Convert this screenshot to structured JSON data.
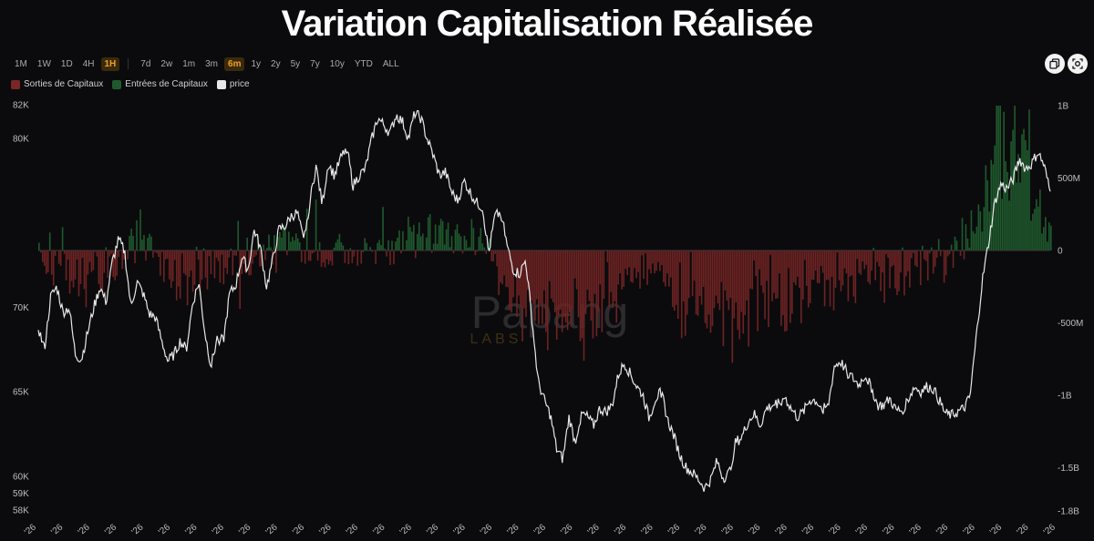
{
  "title": "Variation Capitalisation Réalisée",
  "timeframes": [
    "1M",
    "1W",
    "1D",
    "4H",
    "1H"
  ],
  "active_timeframe": "1H",
  "ranges": [
    "7d",
    "2w",
    "1m",
    "3m",
    "6m",
    "1y",
    "2y",
    "5y",
    "7y",
    "10y",
    "YTD",
    "ALL"
  ],
  "active_range": "6m",
  "legend": [
    {
      "label": "Sorties de Capitaux",
      "color": "#7a2626"
    },
    {
      "label": "Entrées de Capitaux",
      "color": "#1f5a2e"
    },
    {
      "label": "price",
      "color": "#e8e8e8"
    }
  ],
  "watermark": {
    "main": "Papang",
    "sub": "LABS"
  },
  "icons": {
    "copy": "copy-icon",
    "camera": "camera-icon"
  },
  "chart_data": {
    "type": "bar+line",
    "series": [
      {
        "name": "Sorties de Capitaux",
        "type": "bar",
        "color": "#7a2626"
      },
      {
        "name": "Entrées de Capitaux",
        "type": "bar",
        "color": "#1f5a2e"
      },
      {
        "name": "price",
        "type": "line",
        "color": "#e8e8e8"
      }
    ],
    "left_axis": {
      "ticks": [
        {
          "value": 82000,
          "label": "82K"
        },
        {
          "value": 80000,
          "label": "80K"
        },
        {
          "value": 70000,
          "label": "70K"
        },
        {
          "value": 65000,
          "label": "65K"
        },
        {
          "value": 60000,
          "label": "60K"
        },
        {
          "value": 59000,
          "label": "59K"
        },
        {
          "value": 58000,
          "label": "58K"
        }
      ]
    },
    "right_axis": {
      "ticks": [
        {
          "value": 1000000000,
          "label": "1B"
        },
        {
          "value": 500000000,
          "label": "500M"
        },
        {
          "value": 0,
          "label": "0"
        },
        {
          "value": -500000000,
          "label": "-500M"
        },
        {
          "value": -1000000000,
          "label": "-1B"
        },
        {
          "value": -1500000000,
          "label": "-1.5B"
        },
        {
          "value": -1800000000,
          "label": "-1.8B"
        }
      ]
    },
    "x_tick_label": "'26",
    "x_tick_count": 39,
    "price_keypoints": [
      [
        0,
        68800
      ],
      [
        1,
        67500
      ],
      [
        2,
        70600
      ],
      [
        3,
        71200
      ],
      [
        4,
        69700
      ],
      [
        5,
        70000
      ],
      [
        6,
        67200
      ],
      [
        7,
        66900
      ],
      [
        8,
        68500
      ],
      [
        9,
        70000
      ],
      [
        10,
        71200
      ],
      [
        11,
        70300
      ],
      [
        12,
        72700
      ],
      [
        13,
        74000
      ],
      [
        14,
        73300
      ],
      [
        15,
        70000
      ],
      [
        16,
        71500
      ],
      [
        17,
        70800
      ],
      [
        18,
        69600
      ],
      [
        19,
        69400
      ],
      [
        20,
        68000
      ],
      [
        21,
        66800
      ],
      [
        22,
        67200
      ],
      [
        23,
        68000
      ],
      [
        24,
        67500
      ],
      [
        25,
        70200
      ],
      [
        26,
        71500
      ],
      [
        27,
        68500
      ],
      [
        28,
        66500
      ],
      [
        29,
        68200
      ],
      [
        30,
        68000
      ],
      [
        31,
        70800
      ],
      [
        32,
        71300
      ],
      [
        33,
        73000
      ],
      [
        34,
        72200
      ],
      [
        35,
        74600
      ],
      [
        36,
        73500
      ],
      [
        37,
        71200
      ],
      [
        38,
        72800
      ],
      [
        39,
        74600
      ],
      [
        40,
        74800
      ],
      [
        41,
        75400
      ],
      [
        42,
        75600
      ],
      [
        43,
        73900
      ],
      [
        44,
        76200
      ],
      [
        45,
        78400
      ],
      [
        46,
        76100
      ],
      [
        47,
        78500
      ],
      [
        48,
        77800
      ],
      [
        49,
        78800
      ],
      [
        50,
        79500
      ],
      [
        51,
        77200
      ],
      [
        52,
        77800
      ],
      [
        53,
        78200
      ],
      [
        54,
        79900
      ],
      [
        55,
        81200
      ],
      [
        56,
        80800
      ],
      [
        57,
        80300
      ],
      [
        58,
        81400
      ],
      [
        59,
        81000
      ],
      [
        60,
        80000
      ],
      [
        61,
        81500
      ],
      [
        62,
        81200
      ],
      [
        63,
        80000
      ],
      [
        64,
        79000
      ],
      [
        65,
        77800
      ],
      [
        66,
        78000
      ],
      [
        67,
        76800
      ],
      [
        68,
        76300
      ],
      [
        69,
        77500
      ],
      [
        70,
        76800
      ],
      [
        71,
        76200
      ],
      [
        72,
        75900
      ],
      [
        73,
        73200
      ],
      [
        74,
        75400
      ],
      [
        75,
        75600
      ],
      [
        76,
        73600
      ],
      [
        77,
        72200
      ],
      [
        78,
        72000
      ],
      [
        79,
        72800
      ],
      [
        80,
        69300
      ],
      [
        81,
        65600
      ],
      [
        82,
        64500
      ],
      [
        83,
        63600
      ],
      [
        84,
        61600
      ],
      [
        85,
        61000
      ],
      [
        86,
        63500
      ],
      [
        87,
        62000
      ],
      [
        88,
        63700
      ],
      [
        89,
        63500
      ],
      [
        90,
        63000
      ],
      [
        91,
        64000
      ],
      [
        92,
        63800
      ],
      [
        93,
        64200
      ],
      [
        94,
        66000
      ],
      [
        95,
        66700
      ],
      [
        96,
        66000
      ],
      [
        97,
        65300
      ],
      [
        98,
        64800
      ],
      [
        99,
        63400
      ],
      [
        100,
        64600
      ],
      [
        101,
        65000
      ],
      [
        102,
        63300
      ],
      [
        103,
        62400
      ],
      [
        104,
        61200
      ],
      [
        105,
        60500
      ],
      [
        106,
        60200
      ],
      [
        107,
        59800
      ],
      [
        108,
        59300
      ],
      [
        109,
        59800
      ],
      [
        110,
        60900
      ],
      [
        111,
        59900
      ],
      [
        112,
        60200
      ],
      [
        113,
        62000
      ],
      [
        114,
        62300
      ],
      [
        115,
        63200
      ],
      [
        116,
        63700
      ],
      [
        117,
        63000
      ],
      [
        118,
        64000
      ],
      [
        119,
        64200
      ],
      [
        120,
        64400
      ],
      [
        121,
        64700
      ],
      [
        122,
        64000
      ],
      [
        123,
        63500
      ],
      [
        124,
        63800
      ],
      [
        125,
        64500
      ],
      [
        126,
        64500
      ],
      [
        127,
        64000
      ],
      [
        128,
        64100
      ],
      [
        129,
        66500
      ],
      [
        130,
        66800
      ],
      [
        131,
        66200
      ],
      [
        132,
        65800
      ],
      [
        133,
        65400
      ],
      [
        134,
        66000
      ],
      [
        135,
        65300
      ],
      [
        136,
        64200
      ],
      [
        137,
        64200
      ],
      [
        138,
        64600
      ],
      [
        139,
        63900
      ],
      [
        140,
        63900
      ],
      [
        141,
        64600
      ],
      [
        142,
        65300
      ],
      [
        143,
        65000
      ],
      [
        144,
        65300
      ],
      [
        145,
        65200
      ],
      [
        146,
        64500
      ],
      [
        147,
        63700
      ],
      [
        148,
        63600
      ],
      [
        149,
        63800
      ],
      [
        150,
        64000
      ],
      [
        151,
        64700
      ],
      [
        152,
        68200
      ],
      [
        153,
        71600
      ],
      [
        154,
        73800
      ],
      [
        155,
        76200
      ],
      [
        156,
        77300
      ],
      [
        157,
        77000
      ],
      [
        158,
        77600
      ],
      [
        159,
        78800
      ],
      [
        160,
        78200
      ],
      [
        161,
        78500
      ],
      [
        162,
        79200
      ],
      [
        163,
        78400
      ],
      [
        164,
        76800
      ]
    ],
    "flow_keypoints": [
      [
        0,
        -20000000
      ],
      [
        4,
        -180000000
      ],
      [
        8,
        -230000000
      ],
      [
        12,
        -150000000
      ],
      [
        16,
        150000000
      ],
      [
        20,
        -200000000
      ],
      [
        24,
        -280000000
      ],
      [
        28,
        -180000000
      ],
      [
        32,
        -90000000
      ],
      [
        36,
        -60000000
      ],
      [
        40,
        60000000
      ],
      [
        44,
        -90000000
      ],
      [
        48,
        -55000000
      ],
      [
        52,
        10000000
      ],
      [
        56,
        -40000000
      ],
      [
        60,
        110000000
      ],
      [
        64,
        170000000
      ],
      [
        68,
        35000000
      ],
      [
        72,
        60000000
      ],
      [
        76,
        -300000000
      ],
      [
        80,
        -430000000
      ],
      [
        84,
        -550000000
      ],
      [
        88,
        -480000000
      ],
      [
        92,
        -320000000
      ],
      [
        96,
        -230000000
      ],
      [
        100,
        -180000000
      ],
      [
        104,
        -380000000
      ],
      [
        108,
        -430000000
      ],
      [
        112,
        -520000000
      ],
      [
        116,
        -360000000
      ],
      [
        120,
        -300000000
      ],
      [
        124,
        -330000000
      ],
      [
        128,
        -270000000
      ],
      [
        132,
        -230000000
      ],
      [
        136,
        -200000000
      ],
      [
        140,
        -160000000
      ],
      [
        144,
        -120000000
      ],
      [
        148,
        -90000000
      ],
      [
        152,
        180000000
      ],
      [
        156,
        900000000
      ],
      [
        160,
        620000000
      ],
      [
        164,
        50000000
      ]
    ]
  }
}
